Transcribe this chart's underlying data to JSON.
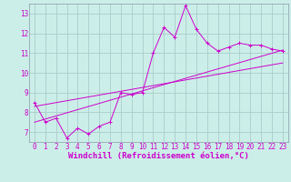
{
  "xlabel": "Windchill (Refroidissement éolien,°C)",
  "bg_color": "#cceee8",
  "grid_color": "#aacccc",
  "line_color": "#cc00cc",
  "spine_color": "#8899aa",
  "x_data": [
    0,
    1,
    2,
    3,
    4,
    5,
    6,
    7,
    8,
    9,
    10,
    11,
    12,
    13,
    14,
    15,
    16,
    17,
    18,
    19,
    20,
    21,
    22,
    23
  ],
  "y_data": [
    8.5,
    7.5,
    7.7,
    6.7,
    7.2,
    6.9,
    7.3,
    7.5,
    9.0,
    8.9,
    9.0,
    11.0,
    12.3,
    11.8,
    13.4,
    12.2,
    11.5,
    11.1,
    11.3,
    11.5,
    11.4,
    11.4,
    11.2,
    11.1
  ],
  "trend1_x": [
    0,
    23
  ],
  "trend1_y": [
    7.5,
    11.15
  ],
  "trend2_x": [
    0,
    23
  ],
  "trend2_y": [
    8.3,
    10.5
  ],
  "xlim": [
    -0.5,
    23.5
  ],
  "ylim": [
    6.5,
    13.5
  ],
  "xticks": [
    0,
    1,
    2,
    3,
    4,
    5,
    6,
    7,
    8,
    9,
    10,
    11,
    12,
    13,
    14,
    15,
    16,
    17,
    18,
    19,
    20,
    21,
    22,
    23
  ],
  "yticks": [
    7,
    8,
    9,
    10,
    11,
    12,
    13
  ],
  "tick_fontsize": 5.5,
  "xlabel_fontsize": 6.5
}
